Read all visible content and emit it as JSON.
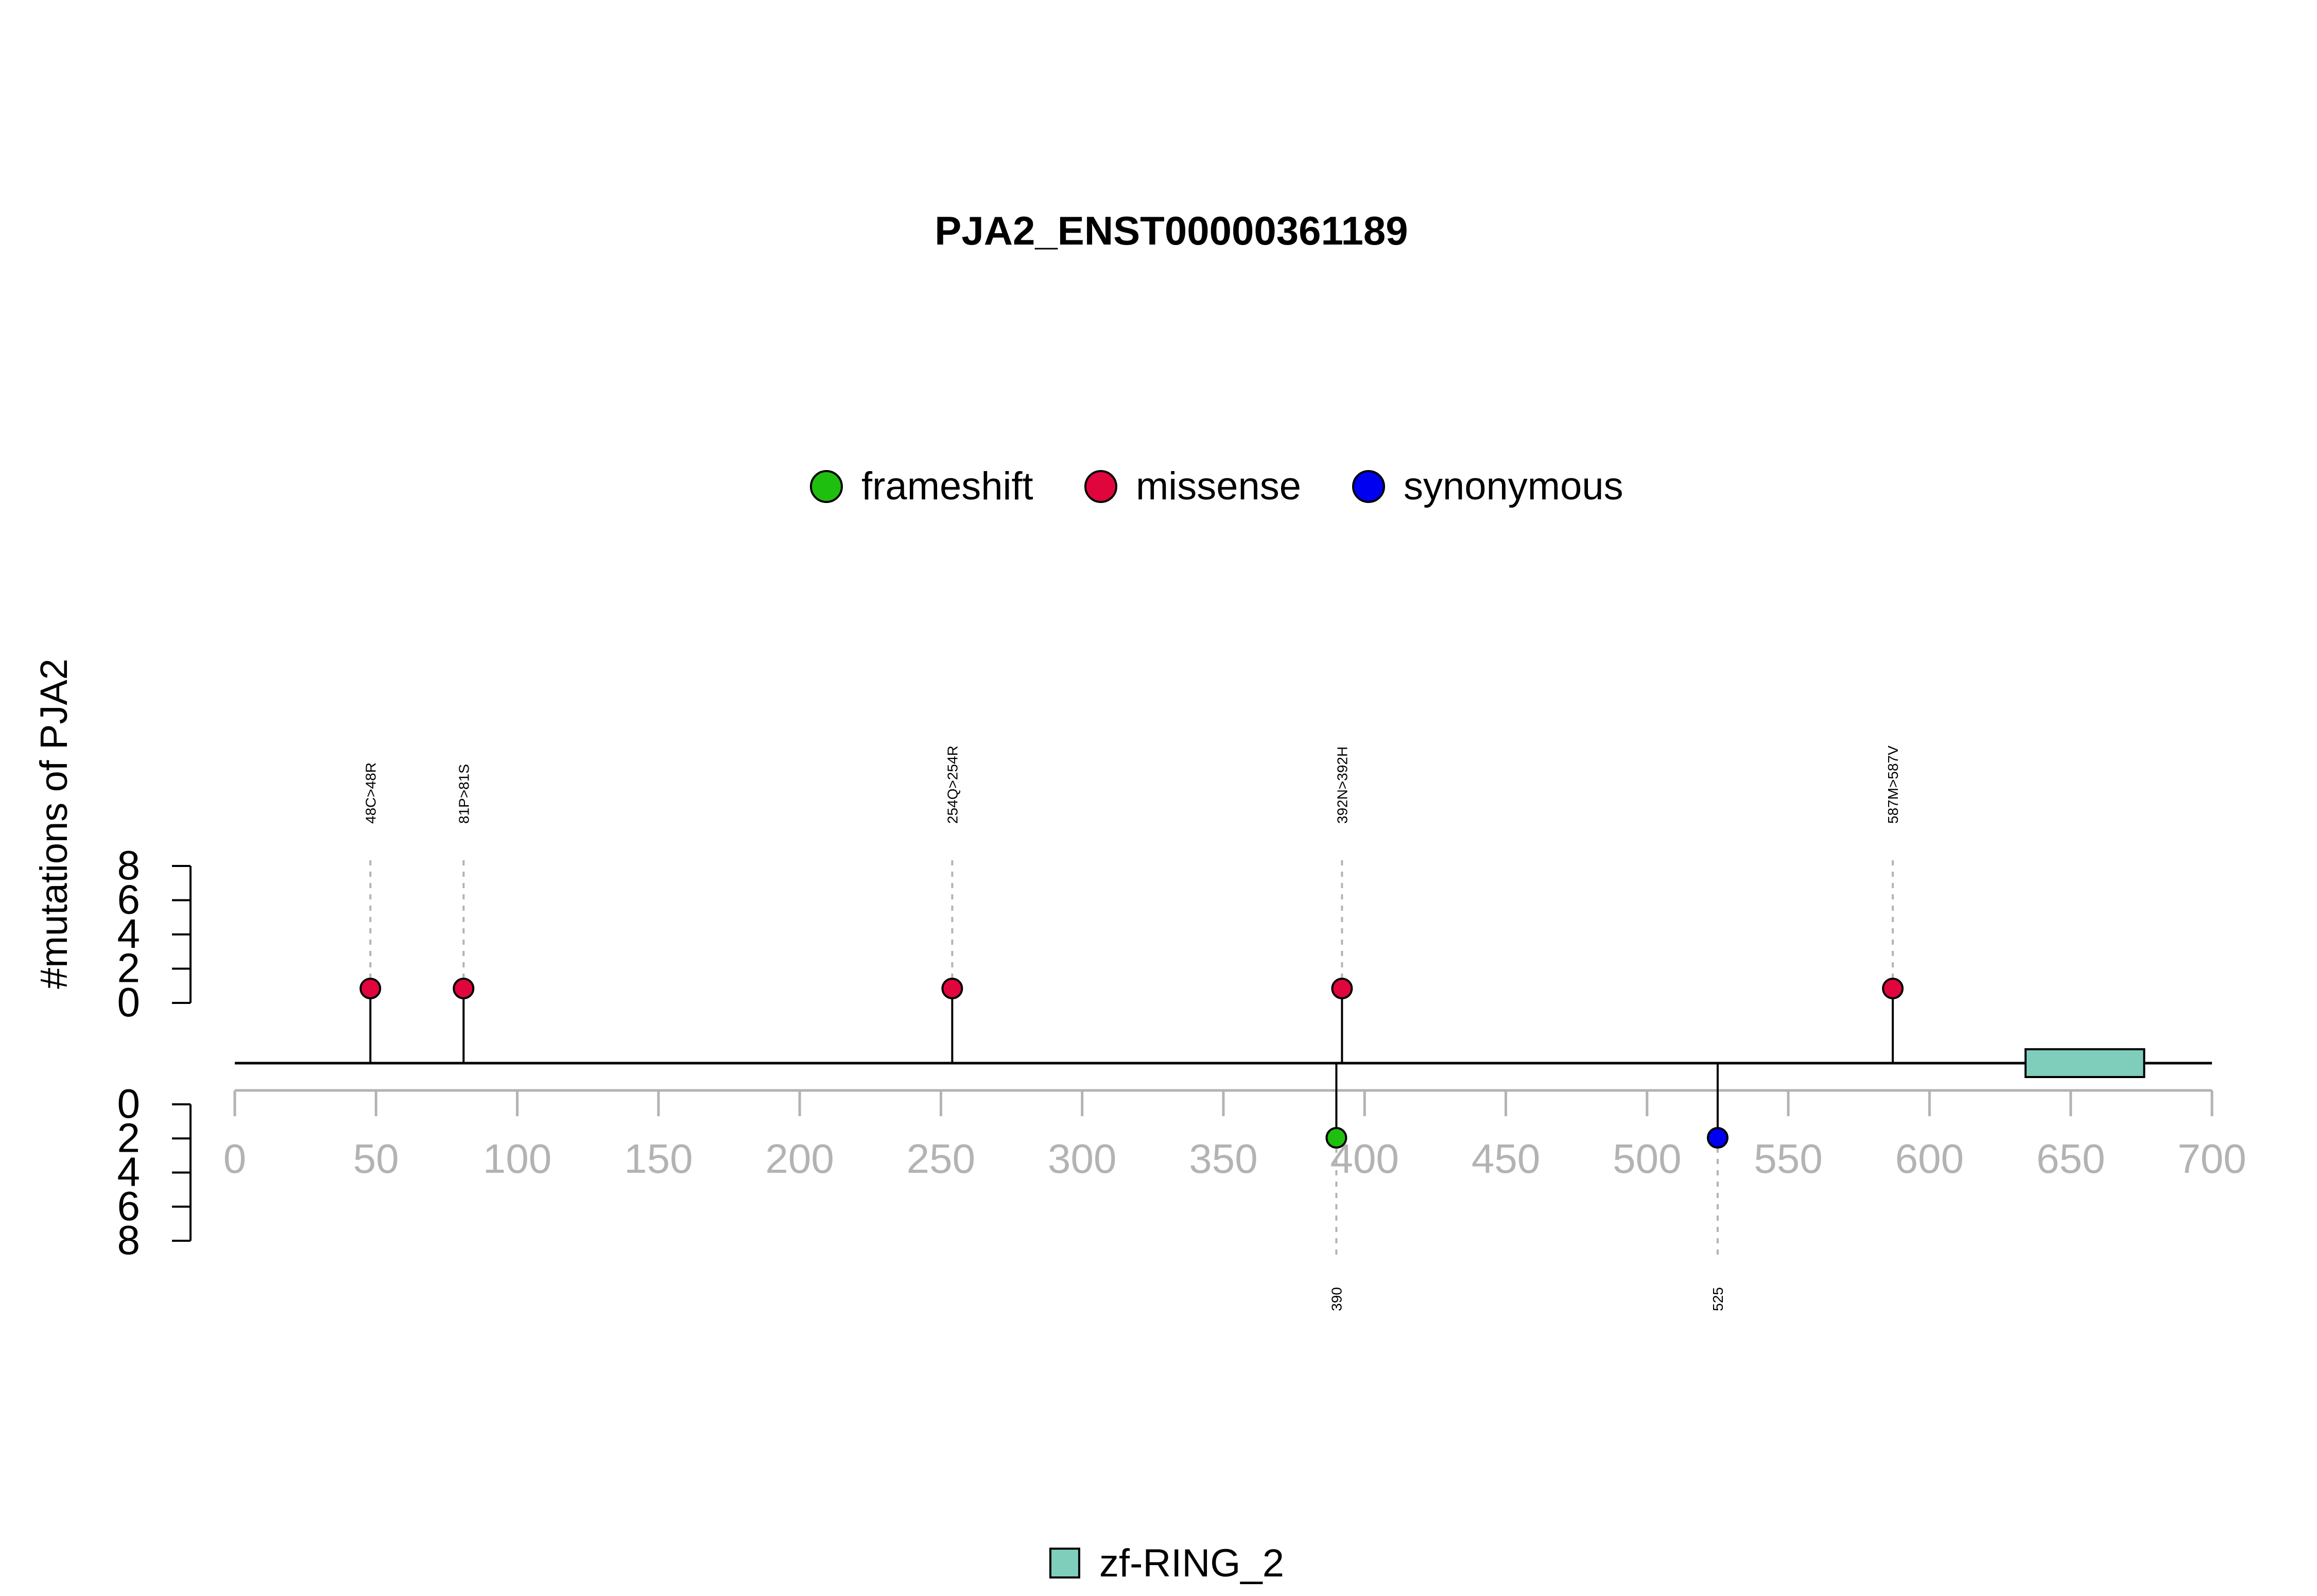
{
  "chart_data": {
    "type": "lollipop",
    "title": "PJA2_ENST00000361189",
    "ylabel": "#mutations of PJA2",
    "xlim": [
      0,
      700
    ],
    "x_ticks": [
      "0",
      "50",
      "100",
      "150",
      "200",
      "250",
      "300",
      "350",
      "400",
      "450",
      "500",
      "550",
      "600",
      "650",
      "700"
    ],
    "y_ticks_top": [
      "0",
      "2",
      "4",
      "6",
      "8"
    ],
    "y_ticks_bottom": [
      "0",
      "2",
      "4",
      "6",
      "8"
    ],
    "ylim": [
      0,
      8
    ],
    "legend": [
      {
        "name": "frameshift",
        "color": "#1FBF0F"
      },
      {
        "name": "missense",
        "color": "#E0063D"
      },
      {
        "name": "synonymous",
        "color": "#0000F0"
      }
    ],
    "domain_legend": [
      {
        "name": "zf-RING_2",
        "color": "#7FCDBB"
      }
    ],
    "domains": [
      {
        "name": "zf-RING_2",
        "start": 634,
        "end": 676,
        "color": "#7FCDBB"
      }
    ],
    "mutations": [
      {
        "pos": 48,
        "count": 1,
        "type": "missense",
        "side": "top",
        "label": "48C>48R"
      },
      {
        "pos": 81,
        "count": 1,
        "type": "missense",
        "side": "top",
        "label": "81P>81S"
      },
      {
        "pos": 254,
        "count": 1,
        "type": "missense",
        "side": "top",
        "label": "254Q>254R"
      },
      {
        "pos": 392,
        "count": 1,
        "type": "missense",
        "side": "top",
        "label": "392N>392H"
      },
      {
        "pos": 587,
        "count": 1,
        "type": "missense",
        "side": "top",
        "label": "587M>587V"
      },
      {
        "pos": 390,
        "count": 1,
        "type": "frameshift",
        "side": "bottom",
        "label": "390"
      },
      {
        "pos": 525,
        "count": 1,
        "type": "synonymous",
        "side": "bottom",
        "label": "525"
      }
    ]
  }
}
